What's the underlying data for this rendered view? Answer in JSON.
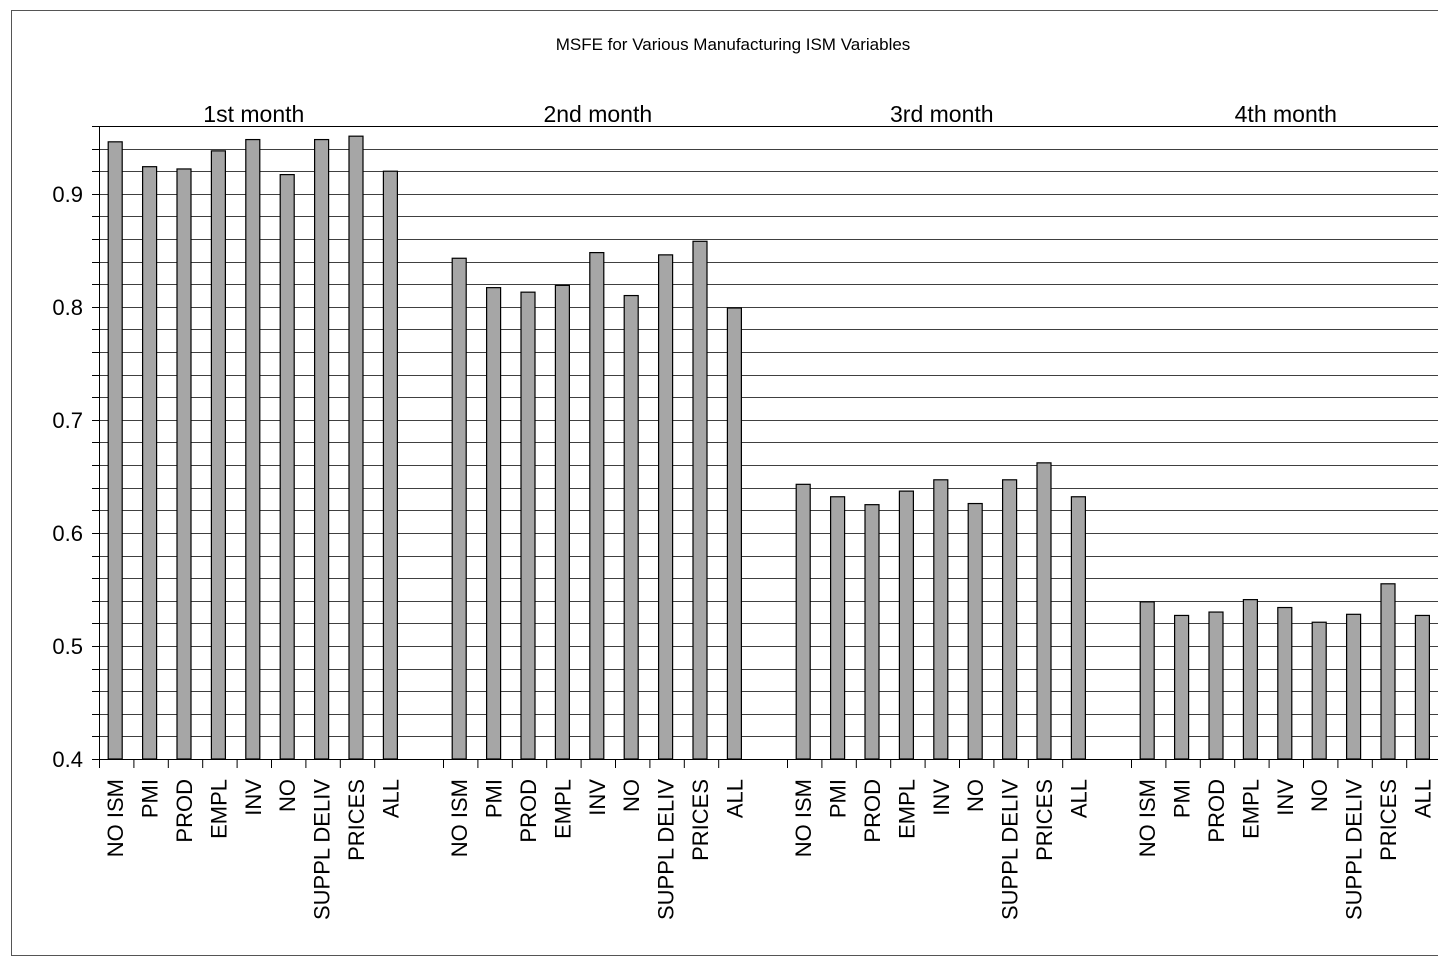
{
  "chart_data": {
    "type": "bar",
    "title": "MSFE for Various Manufacturing ISM Variables",
    "xlabel": "",
    "ylabel": "",
    "ylim": [
      0.4,
      0.96
    ],
    "yticks": [
      0.4,
      0.5,
      0.6,
      0.7,
      0.8,
      0.9
    ],
    "ytick_labels": [
      "0.4",
      "0.5",
      "0.6",
      "0.7",
      "0.8",
      "0.9"
    ],
    "grid": true,
    "bar_color": "#a6a6a6",
    "categories": [
      "NO ISM",
      "PMI",
      "PROD",
      "EMPL",
      "INV",
      "NO",
      "SUPPL DELIV",
      "PRICES",
      "ALL"
    ],
    "groups": [
      {
        "name": "1st month",
        "values": [
          0.946,
          0.924,
          0.922,
          0.938,
          0.948,
          0.917,
          0.948,
          0.951,
          0.92
        ]
      },
      {
        "name": "2nd month",
        "values": [
          0.843,
          0.817,
          0.813,
          0.819,
          0.848,
          0.81,
          0.846,
          0.858,
          0.799
        ]
      },
      {
        "name": "3rd month",
        "values": [
          0.643,
          0.632,
          0.625,
          0.637,
          0.647,
          0.626,
          0.647,
          0.662,
          0.632
        ]
      },
      {
        "name": "4th month",
        "values": [
          0.539,
          0.527,
          0.53,
          0.541,
          0.534,
          0.521,
          0.528,
          0.555,
          0.527
        ]
      }
    ]
  }
}
